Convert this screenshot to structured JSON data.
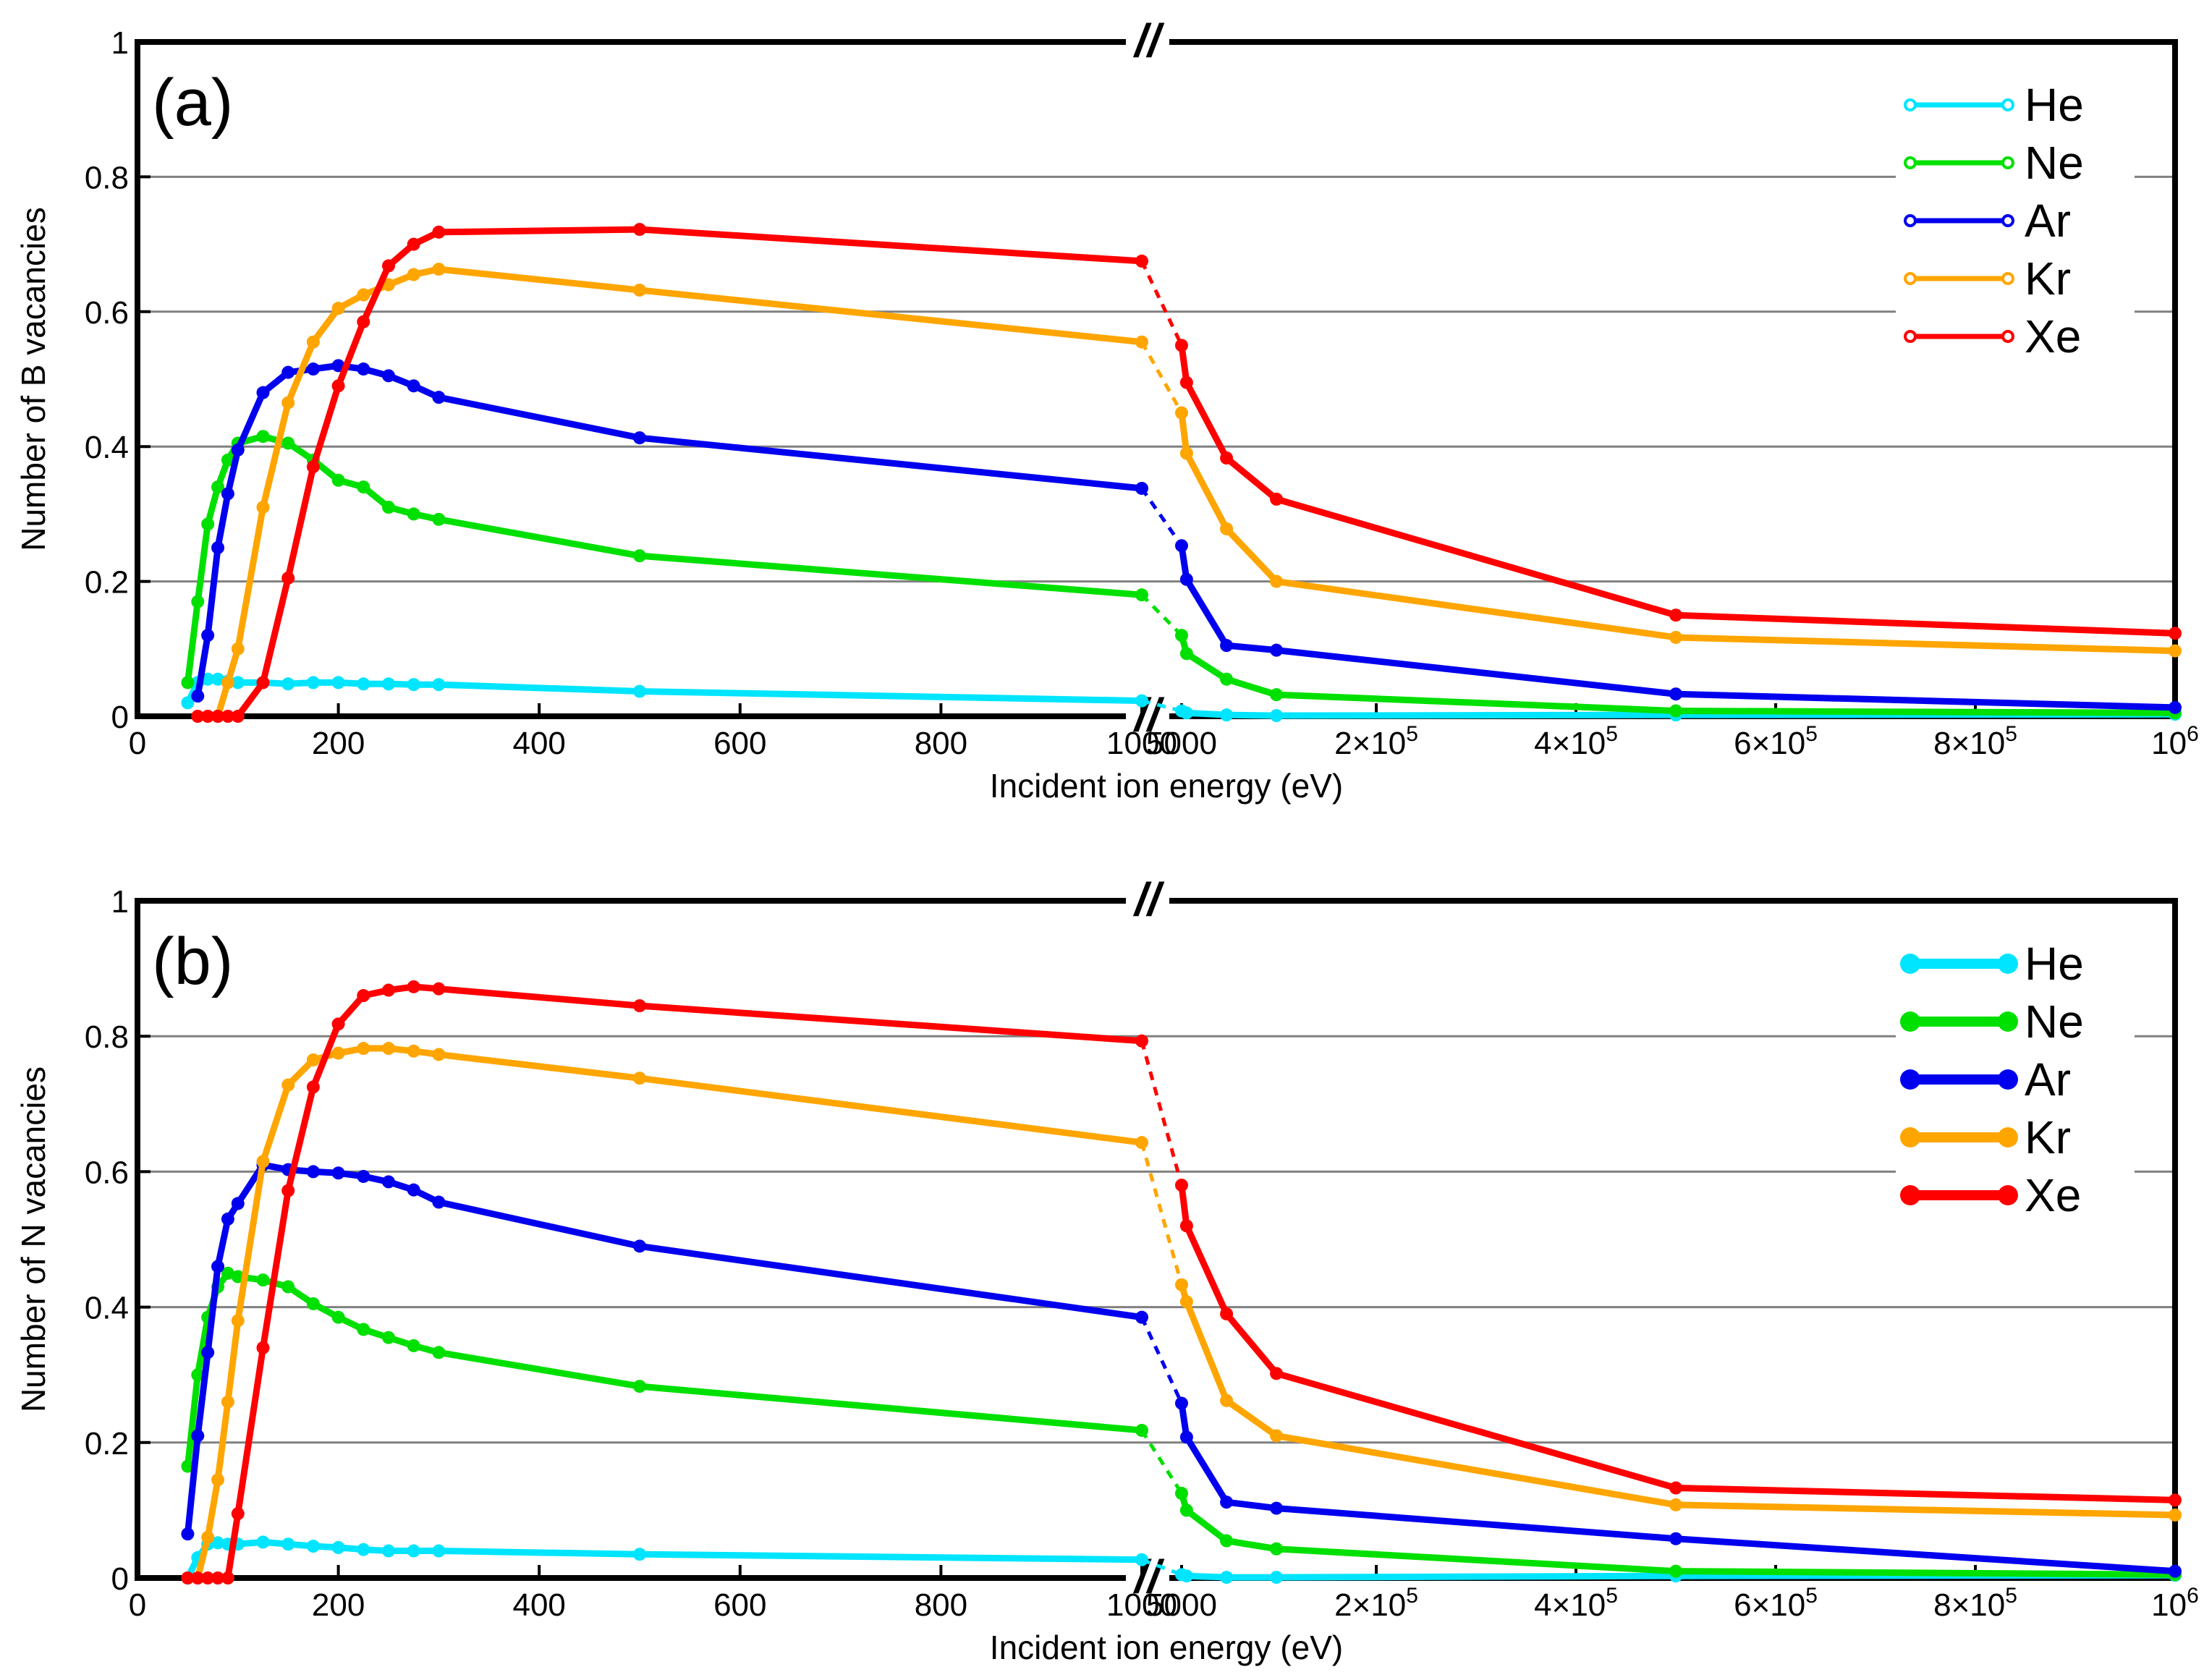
{
  "chart_data": [
    {
      "type": "line",
      "panel_label": "(a)",
      "xlabel": "Incident ion energy (eV)",
      "ylabel": "Number of B vacancies",
      "ylim": [
        0,
        1
      ],
      "y_ticks": [
        "0",
        "0.2",
        "0.4",
        "0.6",
        "0.8",
        "1"
      ],
      "x_ticks_low": [
        "0",
        "200",
        "400",
        "600",
        "800",
        "1000"
      ],
      "x_ticks_high": [
        {
          "base": "5000",
          "exp": ""
        },
        {
          "base": "2×10",
          "exp": "5"
        },
        {
          "base": "4×10",
          "exp": "5"
        },
        {
          "base": "6×10",
          "exp": "5"
        },
        {
          "base": "8×10",
          "exp": "5"
        },
        {
          "base": "10",
          "exp": "6"
        }
      ],
      "x_break": "//",
      "x_axis_note": "broken axis: linear 0–1000 eV segment, then linear 5000–1000000 eV segment",
      "legend_position": "top-right",
      "legend_style": "line-open-marker",
      "series": [
        {
          "name": "He",
          "color": "#00e5ff",
          "low": [
            [
              50,
              0.02
            ],
            [
              60,
              0.05
            ],
            [
              70,
              0.055
            ],
            [
              80,
              0.055
            ],
            [
              90,
              0.052
            ],
            [
              100,
              0.05
            ],
            [
              125,
              0.05
            ],
            [
              150,
              0.048
            ],
            [
              175,
              0.05
            ],
            [
              200,
              0.05
            ],
            [
              225,
              0.048
            ],
            [
              250,
              0.048
            ],
            [
              275,
              0.047
            ],
            [
              300,
              0.047
            ],
            [
              500,
              0.037
            ],
            [
              1000,
              0.023
            ]
          ],
          "high": [
            [
              5000,
              0.008
            ],
            [
              10000,
              0.005
            ],
            [
              50000,
              0.002
            ],
            [
              100000,
              0.001
            ],
            [
              500000,
              0.002
            ],
            [
              1000000,
              0.003
            ]
          ]
        },
        {
          "name": "Ne",
          "color": "#00e000",
          "low": [
            [
              50,
              0.05
            ],
            [
              60,
              0.17
            ],
            [
              70,
              0.285
            ],
            [
              80,
              0.34
            ],
            [
              90,
              0.38
            ],
            [
              100,
              0.405
            ],
            [
              125,
              0.415
            ],
            [
              150,
              0.405
            ],
            [
              175,
              0.38
            ],
            [
              200,
              0.35
            ],
            [
              225,
              0.34
            ],
            [
              250,
              0.31
            ],
            [
              275,
              0.3
            ],
            [
              300,
              0.292
            ],
            [
              500,
              0.238
            ],
            [
              1000,
              0.18
            ]
          ],
          "high": [
            [
              5000,
              0.12
            ],
            [
              10000,
              0.093
            ],
            [
              50000,
              0.055
            ],
            [
              100000,
              0.032
            ],
            [
              500000,
              0.008
            ],
            [
              1000000,
              0.005
            ]
          ]
        },
        {
          "name": "Ar",
          "color": "#0000ee",
          "low": [
            [
              60,
              0.03
            ],
            [
              70,
              0.12
            ],
            [
              80,
              0.25
            ],
            [
              90,
              0.33
            ],
            [
              100,
              0.395
            ],
            [
              125,
              0.48
            ],
            [
              150,
              0.51
            ],
            [
              175,
              0.515
            ],
            [
              200,
              0.52
            ],
            [
              225,
              0.515
            ],
            [
              250,
              0.505
            ],
            [
              275,
              0.49
            ],
            [
              300,
              0.473
            ],
            [
              500,
              0.413
            ],
            [
              1000,
              0.338
            ]
          ],
          "high": [
            [
              5000,
              0.253
            ],
            [
              10000,
              0.203
            ],
            [
              50000,
              0.105
            ],
            [
              100000,
              0.098
            ],
            [
              500000,
              0.033
            ],
            [
              1000000,
              0.013
            ]
          ]
        },
        {
          "name": "Kr",
          "color": "#ffa500",
          "low": [
            [
              70,
              0.0
            ],
            [
              80,
              0.0
            ],
            [
              90,
              0.05
            ],
            [
              100,
              0.1
            ],
            [
              125,
              0.31
            ],
            [
              150,
              0.465
            ],
            [
              175,
              0.555
            ],
            [
              200,
              0.605
            ],
            [
              225,
              0.625
            ],
            [
              250,
              0.64
            ],
            [
              275,
              0.655
            ],
            [
              300,
              0.663
            ],
            [
              500,
              0.632
            ],
            [
              1000,
              0.555
            ]
          ],
          "high": [
            [
              5000,
              0.45
            ],
            [
              10000,
              0.39
            ],
            [
              50000,
              0.278
            ],
            [
              100000,
              0.2
            ],
            [
              500000,
              0.117
            ],
            [
              1000000,
              0.097
            ]
          ]
        },
        {
          "name": "Xe",
          "color": "#ff0000",
          "low": [
            [
              60,
              0.0
            ],
            [
              70,
              0.0
            ],
            [
              80,
              0.0
            ],
            [
              90,
              0.0
            ],
            [
              100,
              0.0
            ],
            [
              125,
              0.05
            ],
            [
              150,
              0.205
            ],
            [
              175,
              0.37
            ],
            [
              200,
              0.49
            ],
            [
              225,
              0.585
            ],
            [
              250,
              0.668
            ],
            [
              275,
              0.7
            ],
            [
              300,
              0.718
            ],
            [
              500,
              0.722
            ],
            [
              1000,
              0.675
            ]
          ],
          "high": [
            [
              5000,
              0.55
            ],
            [
              10000,
              0.495
            ],
            [
              50000,
              0.383
            ],
            [
              100000,
              0.322
            ],
            [
              500000,
              0.15
            ],
            [
              1000000,
              0.123
            ]
          ]
        }
      ]
    },
    {
      "type": "line",
      "panel_label": "(b)",
      "xlabel": "Incident ion energy (eV)",
      "ylabel": "Number of N vacancies",
      "ylim": [
        0,
        1
      ],
      "y_ticks": [
        "0",
        "0.2",
        "0.4",
        "0.6",
        "0.8",
        "1"
      ],
      "x_ticks_low": [
        "0",
        "200",
        "400",
        "600",
        "800",
        "1000"
      ],
      "x_ticks_high": [
        {
          "base": "5000",
          "exp": ""
        },
        {
          "base": "2×10",
          "exp": "5"
        },
        {
          "base": "4×10",
          "exp": "5"
        },
        {
          "base": "6×10",
          "exp": "5"
        },
        {
          "base": "8×10",
          "exp": "5"
        },
        {
          "base": "10",
          "exp": "6"
        }
      ],
      "x_break": "//",
      "x_axis_note": "broken axis: linear 0–1000 eV segment, then linear 5000–1000000 eV segment",
      "legend_position": "top-right",
      "legend_style": "line-filled-marker",
      "series": [
        {
          "name": "He",
          "color": "#00e5ff",
          "low": [
            [
              50,
              0.0
            ],
            [
              60,
              0.03
            ],
            [
              70,
              0.05
            ],
            [
              80,
              0.052
            ],
            [
              90,
              0.05
            ],
            [
              100,
              0.05
            ],
            [
              125,
              0.053
            ],
            [
              150,
              0.05
            ],
            [
              175,
              0.047
            ],
            [
              200,
              0.045
            ],
            [
              225,
              0.042
            ],
            [
              250,
              0.04
            ],
            [
              275,
              0.04
            ],
            [
              300,
              0.04
            ],
            [
              500,
              0.035
            ],
            [
              1000,
              0.027
            ]
          ],
          "high": [
            [
              5000,
              0.005
            ],
            [
              10000,
              0.003
            ],
            [
              50000,
              0.001
            ],
            [
              100000,
              0.001
            ],
            [
              500000,
              0.003
            ],
            [
              1000000,
              0.004
            ]
          ]
        },
        {
          "name": "Ne",
          "color": "#00e000",
          "low": [
            [
              50,
              0.165
            ],
            [
              60,
              0.3
            ],
            [
              70,
              0.385
            ],
            [
              80,
              0.43
            ],
            [
              90,
              0.45
            ],
            [
              100,
              0.445
            ],
            [
              125,
              0.44
            ],
            [
              150,
              0.43
            ],
            [
              175,
              0.405
            ],
            [
              200,
              0.385
            ],
            [
              225,
              0.367
            ],
            [
              250,
              0.355
            ],
            [
              275,
              0.343
            ],
            [
              300,
              0.333
            ],
            [
              500,
              0.283
            ],
            [
              1000,
              0.218
            ]
          ],
          "high": [
            [
              5000,
              0.125
            ],
            [
              10000,
              0.1
            ],
            [
              50000,
              0.055
            ],
            [
              100000,
              0.043
            ],
            [
              500000,
              0.01
            ],
            [
              1000000,
              0.005
            ]
          ]
        },
        {
          "name": "Ar",
          "color": "#0000ee",
          "low": [
            [
              50,
              0.065
            ],
            [
              60,
              0.21
            ],
            [
              70,
              0.333
            ],
            [
              80,
              0.46
            ],
            [
              90,
              0.53
            ],
            [
              100,
              0.553
            ],
            [
              125,
              0.61
            ],
            [
              150,
              0.603
            ],
            [
              175,
              0.6
            ],
            [
              200,
              0.598
            ],
            [
              225,
              0.593
            ],
            [
              250,
              0.585
            ],
            [
              275,
              0.573
            ],
            [
              300,
              0.555
            ],
            [
              500,
              0.49
            ],
            [
              1000,
              0.385
            ]
          ],
          "high": [
            [
              5000,
              0.258
            ],
            [
              10000,
              0.208
            ],
            [
              50000,
              0.112
            ],
            [
              100000,
              0.103
            ],
            [
              500000,
              0.058
            ],
            [
              1000000,
              0.01
            ]
          ]
        },
        {
          "name": "Kr",
          "color": "#ffa500",
          "low": [
            [
              60,
              0.0
            ],
            [
              70,
              0.06
            ],
            [
              80,
              0.145
            ],
            [
              90,
              0.26
            ],
            [
              100,
              0.38
            ],
            [
              125,
              0.615
            ],
            [
              150,
              0.728
            ],
            [
              175,
              0.765
            ],
            [
              200,
              0.775
            ],
            [
              225,
              0.782
            ],
            [
              250,
              0.782
            ],
            [
              275,
              0.778
            ],
            [
              300,
              0.773
            ],
            [
              500,
              0.738
            ],
            [
              1000,
              0.643
            ]
          ],
          "high": [
            [
              5000,
              0.433
            ],
            [
              10000,
              0.408
            ],
            [
              50000,
              0.262
            ],
            [
              100000,
              0.21
            ],
            [
              500000,
              0.108
            ],
            [
              1000000,
              0.093
            ]
          ]
        },
        {
          "name": "Xe",
          "color": "#ff0000",
          "low": [
            [
              50,
              0.0
            ],
            [
              60,
              0.0
            ],
            [
              70,
              0.0
            ],
            [
              80,
              0.0
            ],
            [
              90,
              0.0
            ],
            [
              100,
              0.095
            ],
            [
              125,
              0.34
            ],
            [
              150,
              0.572
            ],
            [
              175,
              0.725
            ],
            [
              200,
              0.818
            ],
            [
              225,
              0.86
            ],
            [
              250,
              0.868
            ],
            [
              275,
              0.873
            ],
            [
              300,
              0.87
            ],
            [
              500,
              0.845
            ],
            [
              1000,
              0.793
            ]
          ],
          "high": [
            [
              5000,
              0.58
            ],
            [
              10000,
              0.52
            ],
            [
              50000,
              0.39
            ],
            [
              100000,
              0.302
            ],
            [
              500000,
              0.133
            ],
            [
              1000000,
              0.115
            ]
          ]
        }
      ]
    }
  ]
}
